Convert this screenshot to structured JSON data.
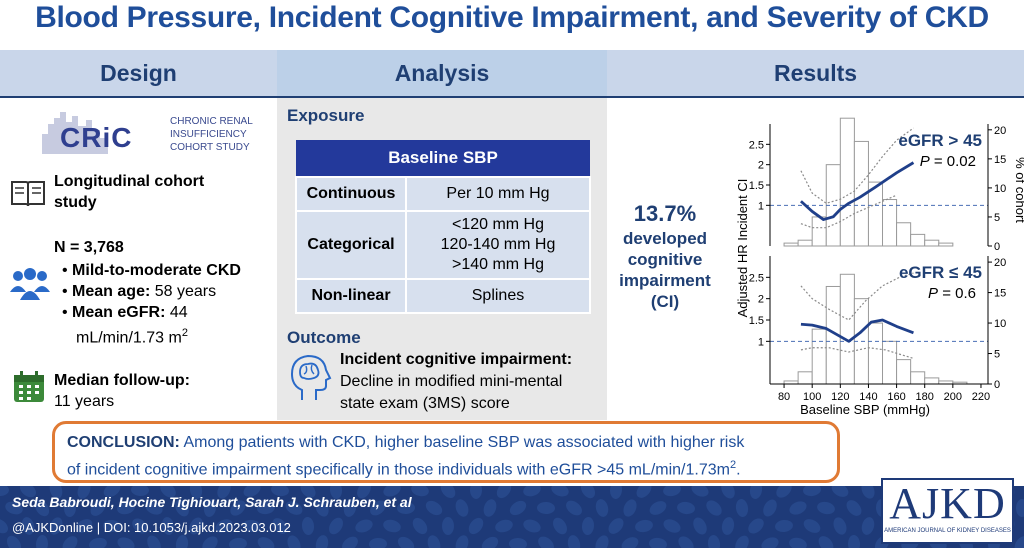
{
  "title": "Blood Pressure, Incident Cognitive Impairment, and Severity of CKD",
  "headers": {
    "design": "Design",
    "analysis": "Analysis",
    "results": "Results"
  },
  "design": {
    "logo": {
      "word": "CRiC",
      "line1": "Chronic Renal",
      "line2": "Insufficiency",
      "line3": "Cohort Study"
    },
    "study_type_line1": "Longitudinal cohort",
    "study_type_line2": "study",
    "n": "N = 3,768",
    "bullets": [
      {
        "bold": "Mild-to-moderate CKD",
        "rest": ""
      },
      {
        "bold": "Mean age:",
        "rest": " 58 years"
      },
      {
        "bold": "Mean eGFR:",
        "rest": " 44"
      }
    ],
    "egfr_units": "mL/min/1.73 m",
    "egfr_sup": "2",
    "followup_label": "Median follow-up:",
    "followup_value": "11 years"
  },
  "analysis": {
    "exposure_label": "Exposure",
    "table_header": "Baseline SBP",
    "rows": [
      {
        "label": "Continuous",
        "value": "Per 10 mm Hg"
      },
      {
        "label": "Categorical",
        "value1": "<120 mm Hg",
        "value2": "120-140 mm Hg",
        "value3": ">140 mm Hg"
      },
      {
        "label": "Non-linear",
        "value": "Splines"
      }
    ],
    "outcome_label": "Outcome",
    "outcome_title": "Incident cognitive impairment:",
    "outcome_line1": "Decline in modified mini-mental",
    "outcome_line2": "state exam (3MS) score"
  },
  "results": {
    "percent": "13.7%",
    "line1": "developed",
    "line2": "cognitive",
    "line3": "impairment",
    "line4": "(CI)"
  },
  "chart_data": {
    "type": "line",
    "xlabel": "Baseline SBP (mmHg)",
    "ylabel_left": "Adjusted HR Incident CI",
    "ylabel_right": "% of cohort",
    "x_ticks": [
      80,
      100,
      120,
      140,
      160,
      180,
      200,
      220
    ],
    "xlim": [
      70,
      225
    ],
    "hr_ticks": [
      "1",
      "1.5",
      "2",
      "2.5"
    ],
    "pct_ticks": [
      "0",
      "5",
      "10",
      "15",
      "20"
    ],
    "panels": [
      {
        "label": "eGFR > 45",
        "p_label": "P",
        "p_value": " = 0.02",
        "histogram_bins": [
          80,
          90,
          100,
          110,
          120,
          130,
          140,
          150,
          160,
          170,
          180,
          190,
          200
        ],
        "histogram_pct": [
          0.5,
          1,
          5,
          14,
          22,
          18,
          11,
          8,
          4,
          2,
          1,
          0.5
        ],
        "hr_x": [
          92,
          100,
          108,
          115,
          120,
          126,
          134,
          145,
          160,
          172
        ],
        "hr": [
          1.1,
          0.85,
          0.65,
          0.72,
          0.9,
          1.05,
          1.2,
          1.45,
          1.8,
          2.05
        ],
        "ci_upper_x": [
          92,
          100,
          110,
          120,
          130,
          140,
          150,
          160,
          172
        ],
        "ci_upper": [
          1.85,
          1.3,
          1.05,
          1.15,
          1.35,
          1.75,
          2.2,
          2.6,
          2.9
        ],
        "ci_lower_x": [
          92,
          100,
          110,
          120,
          130,
          140,
          150,
          160
        ],
        "ci_lower": [
          0.55,
          0.45,
          0.45,
          0.6,
          0.8,
          0.95,
          1.1,
          1.25
        ]
      },
      {
        "label": "eGFR ≤ 45",
        "p_label": "P",
        "p_value": " = 0.6",
        "histogram_bins": [
          80,
          90,
          100,
          110,
          120,
          130,
          140,
          150,
          160,
          170,
          180,
          190,
          200,
          210
        ],
        "histogram_pct": [
          0.5,
          2,
          9,
          16,
          18,
          14,
          10,
          7,
          4,
          2,
          1,
          0.5,
          0.3
        ],
        "hr_x": [
          92,
          100,
          110,
          118,
          126,
          134,
          142,
          150,
          160,
          172
        ],
        "hr": [
          1.4,
          1.38,
          1.3,
          1.15,
          1.0,
          1.2,
          1.45,
          1.5,
          1.35,
          1.2
        ],
        "ci_upper_x": [
          92,
          100,
          112,
          126,
          138,
          150,
          162,
          172
        ],
        "ci_upper": [
          2.3,
          2.0,
          1.75,
          1.5,
          1.95,
          2.3,
          2.5,
          2.6
        ],
        "ci_lower_x": [
          92,
          100,
          112,
          126,
          140,
          152,
          162,
          172
        ],
        "ci_lower": [
          0.8,
          0.85,
          0.85,
          0.75,
          0.85,
          0.8,
          0.7,
          0.6
        ]
      }
    ]
  },
  "conclusion": {
    "label": "CONCLUSION:",
    "text1": " Among patients with CKD, higher baseline SBP was associated with higher risk",
    "text2": "of incident cognitive impairment specifically in those individuals with eGFR >45 mL/min/1.73m",
    "text2_sup": "2",
    "text2_end": "."
  },
  "footer": {
    "authors": "Seda Babroudi, Hocine Tighiouart, Sarah J. Schrauben, et al",
    "doi": "@AJKDonline | DOI: 10.1053/j.ajkd.2023.03.012",
    "logo": "AJKD",
    "logo_sub": "American Journal of Kidney Diseases"
  },
  "colors": {
    "title": "#1f4e9a",
    "header_band": "#c9d6ea",
    "table_header": "#23399b",
    "footer": "#1e3a78",
    "accent_orange": "#e07a34",
    "curve": "#1f3f8a"
  }
}
